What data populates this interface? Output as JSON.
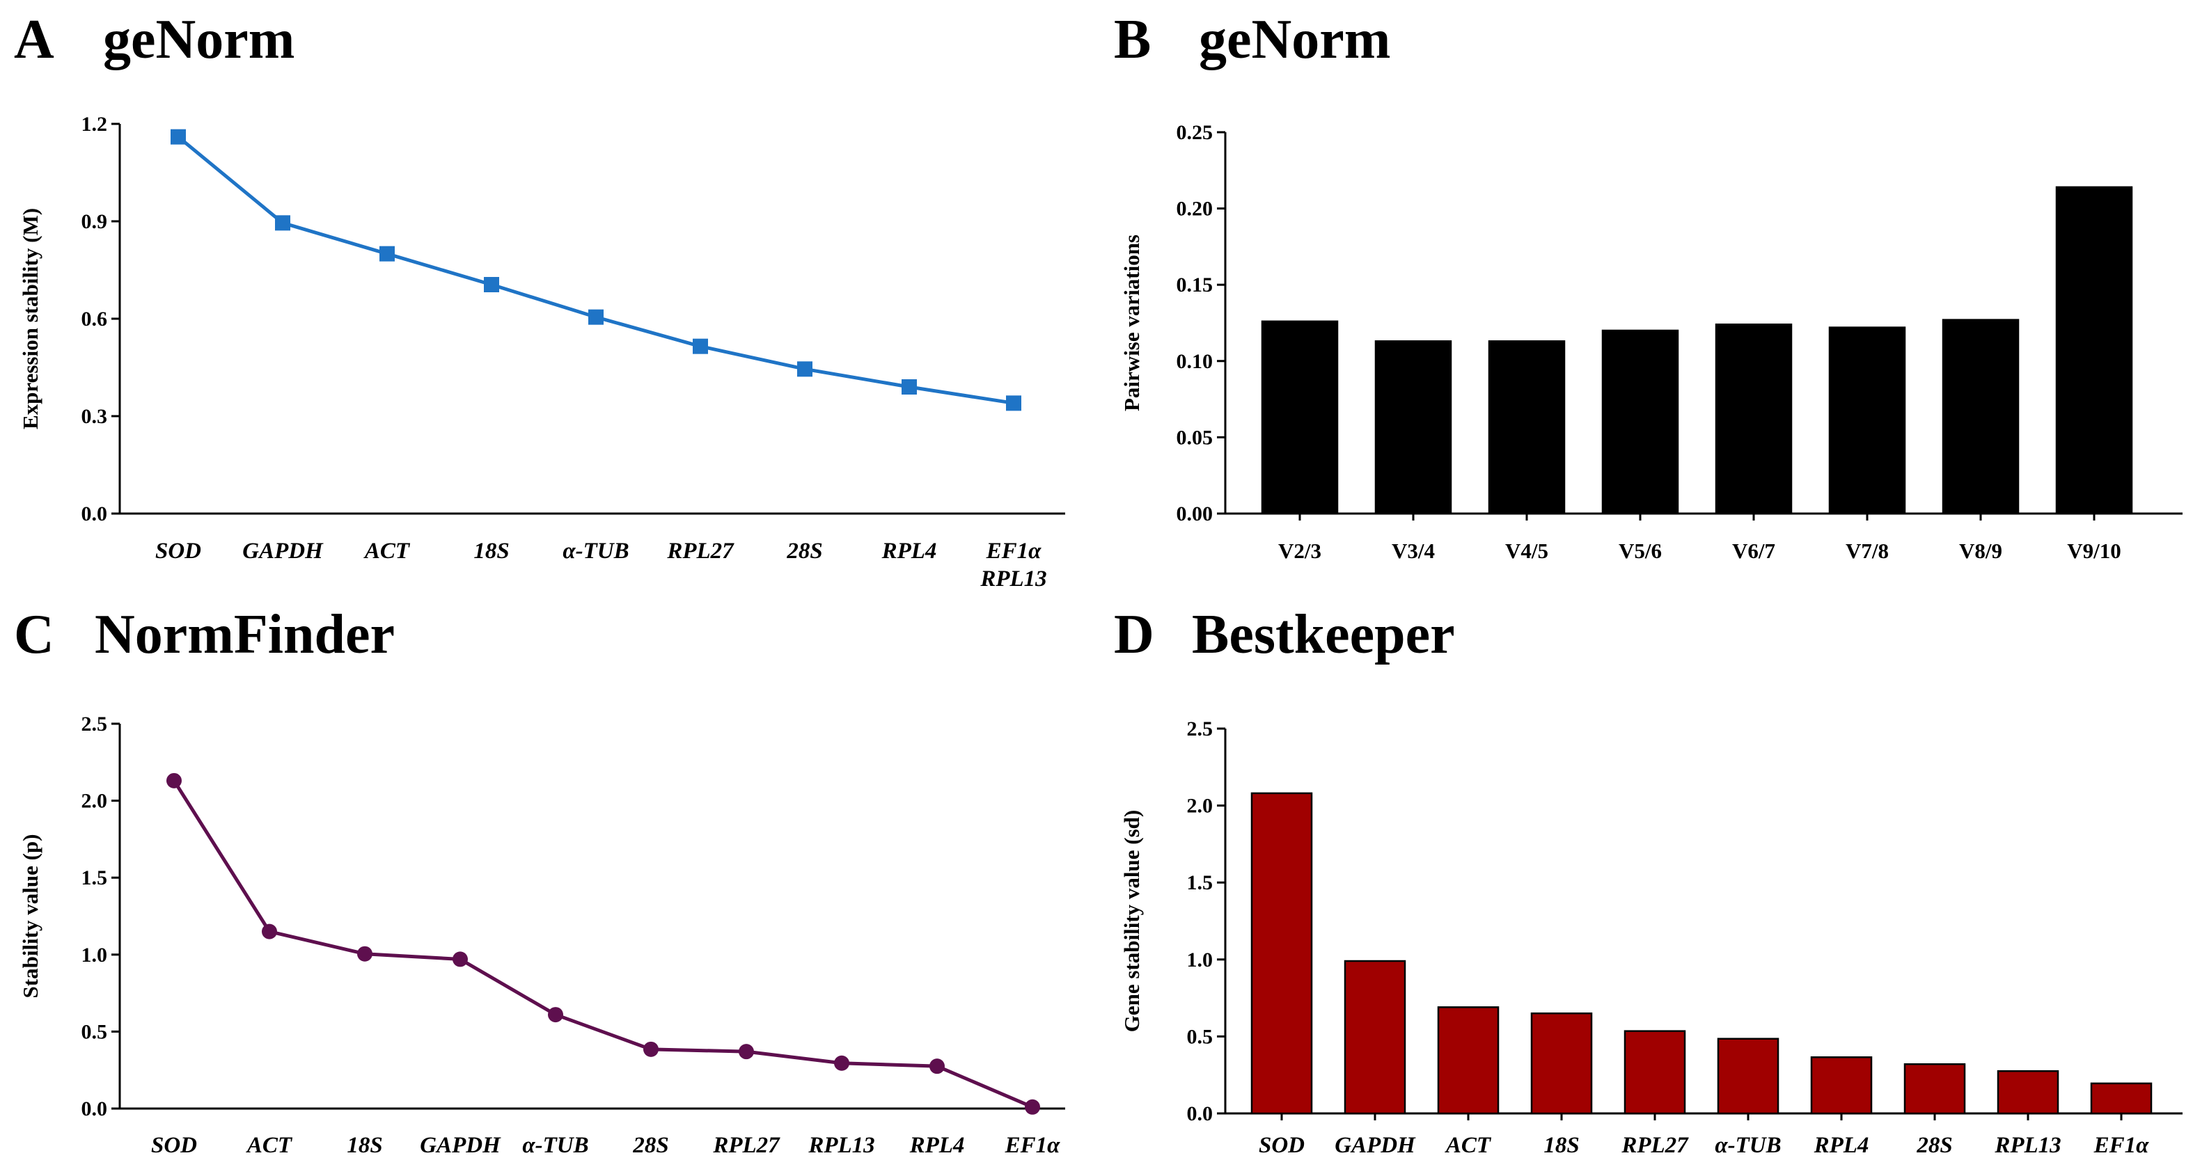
{
  "chart_data": [
    {
      "type": "line",
      "panel": "A",
      "title": "geNorm",
      "ylabel": "Expression stability (M)",
      "xlabel": "",
      "categories": [
        "SOD",
        "GAPDH",
        "ACT",
        "18S",
        "α-TUB",
        "RPL27",
        "28S",
        "RPL4",
        "EF1α\nRPL13"
      ],
      "values": [
        1.16,
        0.895,
        0.8,
        0.705,
        0.605,
        0.515,
        0.445,
        0.39,
        0.34
      ],
      "ylim": [
        0,
        1.2
      ],
      "yticks": [
        "0.0",
        "0.3",
        "0.6",
        "0.9",
        "1.2"
      ],
      "color": "#1f74c6",
      "marker": "square",
      "italic_categories": true
    },
    {
      "type": "bar",
      "panel": "B",
      "title": "geNorm",
      "ylabel": "Pairwise variations",
      "xlabel": "",
      "categories": [
        "V2/3",
        "V3/4",
        "V4/5",
        "V5/6",
        "V6/7",
        "V7/8",
        "V8/9",
        "V9/10"
      ],
      "values": [
        0.126,
        0.113,
        0.113,
        0.12,
        0.124,
        0.122,
        0.127,
        0.214
      ],
      "ylim": [
        0,
        0.25
      ],
      "yticks": [
        "0.00",
        "0.05",
        "0.10",
        "0.15",
        "0.20",
        "0.25"
      ],
      "color": "#000000",
      "italic_categories": false
    },
    {
      "type": "line",
      "panel": "C",
      "title": "NormFinder",
      "ylabel": "Stability value (p)",
      "xlabel": "",
      "categories": [
        "SOD",
        "ACT",
        "18S",
        "GAPDH",
        "α-TUB",
        "28S",
        "RPL27",
        "RPL13",
        "RPL4",
        "EF1α"
      ],
      "values": [
        2.13,
        1.15,
        1.005,
        0.97,
        0.61,
        0.385,
        0.37,
        0.295,
        0.275,
        0.01
      ],
      "ylim": [
        0,
        2.5
      ],
      "yticks": [
        "0.0",
        "0.5",
        "1.0",
        "1.5",
        "2.0",
        "2.5"
      ],
      "color": "#5e0f4e",
      "marker": "circle",
      "italic_categories": true
    },
    {
      "type": "bar",
      "panel": "D",
      "title": "Bestkeeper",
      "ylabel": "Gene stability value (sd)",
      "xlabel": "",
      "categories": [
        "SOD",
        "GAPDH",
        "ACT",
        "18S",
        "RPL27",
        "α-TUB",
        "RPL4",
        "28S",
        "RPL13",
        "EF1α"
      ],
      "values": [
        2.08,
        0.99,
        0.69,
        0.65,
        0.535,
        0.485,
        0.365,
        0.32,
        0.275,
        0.195
      ],
      "ylim": [
        0,
        2.5
      ],
      "yticks": [
        "0.0",
        "0.5",
        "1.0",
        "1.5",
        "2.0",
        "2.5"
      ],
      "color": "#a00000",
      "italic_categories": true
    }
  ]
}
